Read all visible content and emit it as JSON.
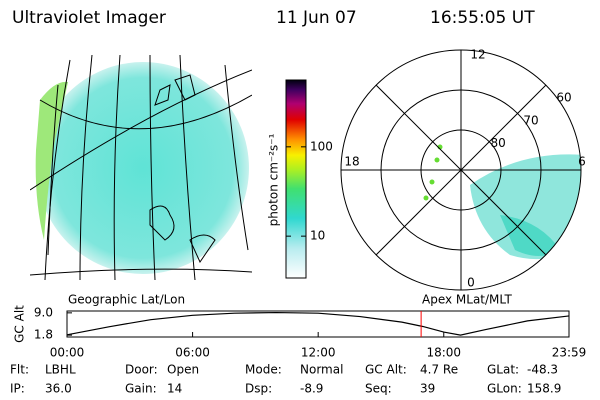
{
  "header": {
    "title": "Ultraviolet Imager",
    "date": "11 Jun 07",
    "time": "16:55:05 UT"
  },
  "colorbar": {
    "label": "photon cm⁻²s⁻¹",
    "clim": [
      3.4,
      560
    ],
    "ticks": [
      10,
      100
    ],
    "log": true
  },
  "polar": {
    "mlt_labels": {
      "top": "12",
      "left": "18",
      "right": "6",
      "bottom": "0"
    },
    "mlat_rings": [
      80,
      70,
      60
    ]
  },
  "map_labels": {
    "left": "Geographic Lat/Lon",
    "right": "Apex MLat/MLT"
  },
  "chart_data": {
    "type": "line",
    "ylabel": "GC Alt",
    "x": [
      0,
      2,
      4,
      6,
      8,
      10,
      12,
      14,
      16,
      17,
      18,
      18.8,
      20,
      22,
      23.983
    ],
    "values": [
      1.9,
      4.5,
      6.8,
      8.2,
      8.9,
      9.1,
      8.9,
      7.8,
      6.0,
      4.6,
      2.8,
      1.8,
      3.6,
      6.4,
      8.0
    ],
    "color": "#000000",
    "marker_x": 16.918,
    "marker_color": "#ff0000",
    "xlim": [
      0,
      23.983
    ],
    "xticks": [
      {
        "value": 0,
        "label": "00:00"
      },
      {
        "value": 6,
        "label": "06:00"
      },
      {
        "value": 12,
        "label": "12:00"
      },
      {
        "value": 18,
        "label": "18:00"
      },
      {
        "value": 23.983,
        "label": "23:59"
      }
    ],
    "ylim": [
      1.2,
      9.6
    ],
    "yticks": [
      1.8,
      {
        "value": 9,
        "label": "9.0"
      }
    ]
  },
  "footer": [
    [
      {
        "label": "Flt:",
        "value": "LBHL"
      },
      {
        "label": "Door:",
        "value": "Open"
      },
      {
        "label": "Mode:",
        "value": "Normal"
      },
      {
        "label": "GC Alt:",
        "value": "4.7 Re"
      },
      {
        "label": "GLat:",
        "value": "-48.3"
      }
    ],
    [
      {
        "label": "IP:",
        "value": "36.0"
      },
      {
        "label": "Gain:",
        "value": "14"
      },
      {
        "label": "Dsp:",
        "value": "-8.9"
      },
      {
        "label": "Seq:",
        "value": "39"
      },
      {
        "label": "GLon:",
        "value": "158.9"
      }
    ]
  ]
}
